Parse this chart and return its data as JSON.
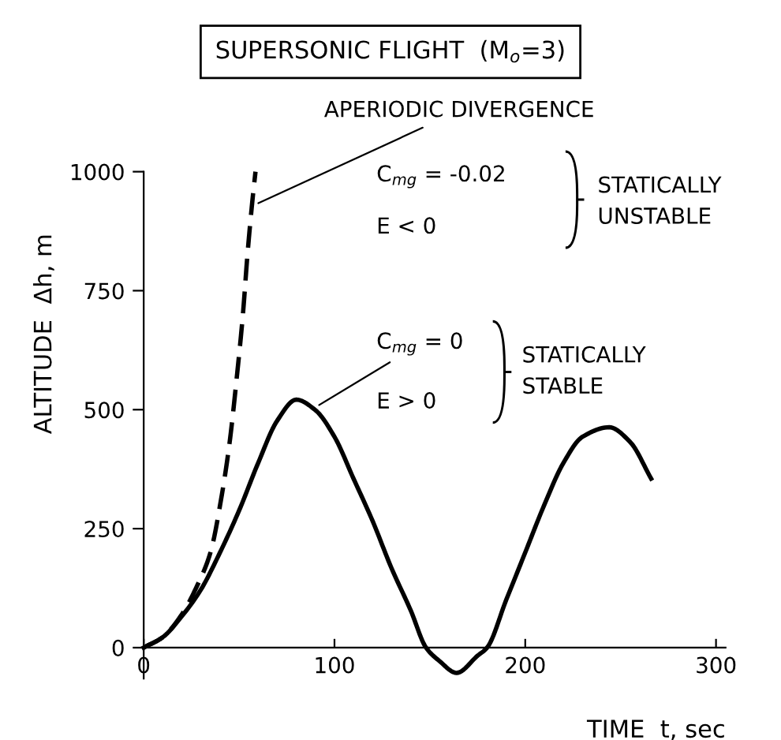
{
  "chart_data": {
    "type": "line",
    "title": "SUPERSONIC FLIGHT  (M$_{o}$=3)",
    "xlabel": "TIME  t, sec",
    "ylabel": "ALTITUDE  Δh, m",
    "series": [
      {
        "color": "#000000",
        "line_style": "dashed",
        "x": [
          0,
          10,
          20,
          28,
          35,
          41,
          45,
          49,
          52,
          54.5,
          57,
          58.6
        ],
        "values": [
          0,
          22,
          70,
          130,
          200,
          322,
          430,
          576,
          700,
          831,
          940,
          1000
        ]
      },
      {
        "color": "#000000",
        "line_style": "solid",
        "x": [
          0,
          10,
          20,
          30,
          40,
          50,
          60,
          70,
          80,
          90,
          100,
          110,
          120,
          130,
          140,
          148,
          155,
          164,
          175,
          180,
          190,
          200,
          210,
          220,
          230,
          244,
          255,
          266
        ],
        "values": [
          0,
          22,
          66,
          122,
          200,
          288,
          388,
          477,
          521,
          499,
          443,
          355,
          266,
          166,
          78,
          0,
          -28,
          -53,
          -17,
          0,
          100,
          200,
          300,
          388,
          443,
          463,
          432,
          355
        ]
      }
    ],
    "xlim": [
      0,
      305
    ],
    "ylim": [
      -65,
      1000
    ],
    "xticks": [
      0,
      100,
      200,
      300
    ],
    "yticks": [
      0,
      250,
      500,
      750,
      1000
    ],
    "grid": false,
    "legend": false,
    "marker": "none",
    "annotations": [
      {
        "text": "APERIODIC DIVERGENCE",
        "x": 58,
        "y": 930
      },
      "C$_{mg}$ = -0.02",
      "E < 0",
      "STATICALLY\nUNSTABLE",
      {
        "text": "C$_{mg}$ = 0",
        "x": 90,
        "y": 505
      },
      "E > 0",
      "STATICALLY\nSTABLE"
    ]
  }
}
